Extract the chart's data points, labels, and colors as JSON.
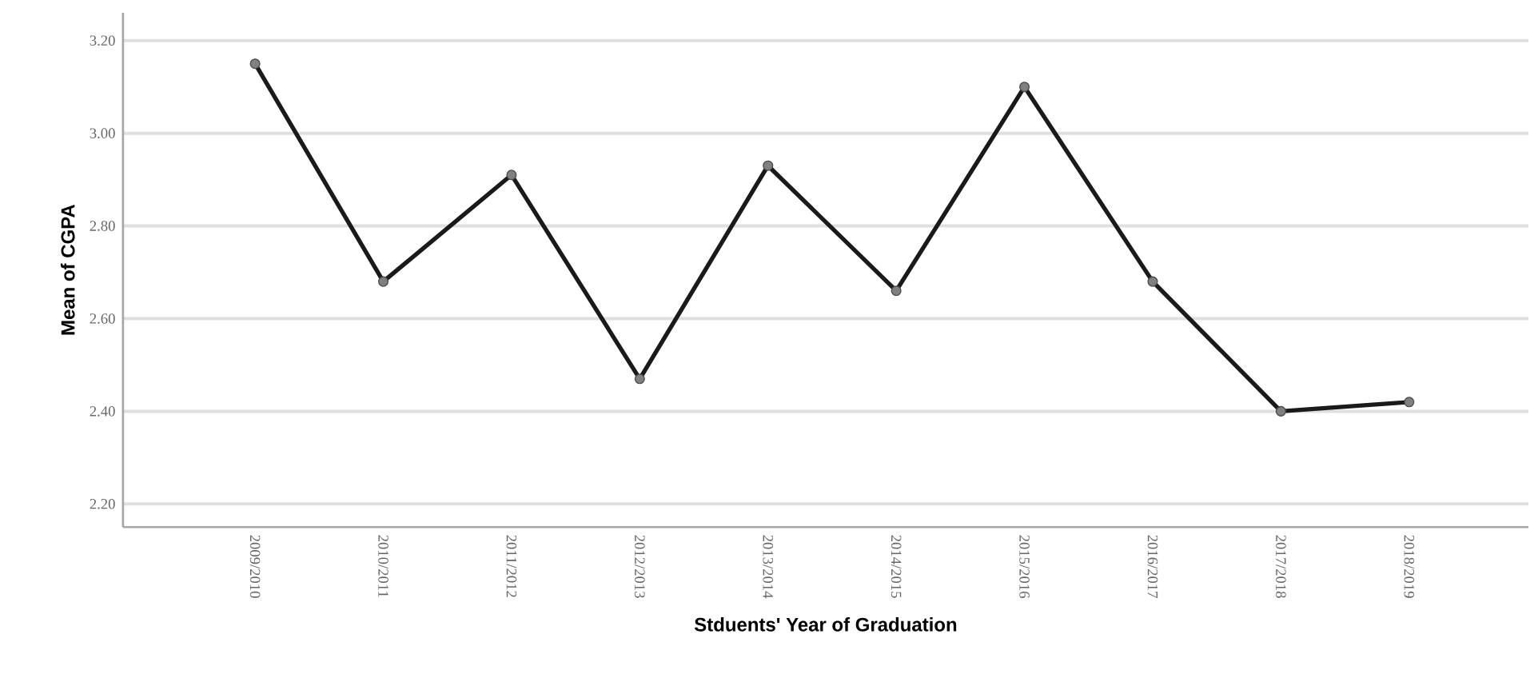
{
  "chart_data": {
    "type": "line",
    "xlabel": "Stduents' Year of Graduation",
    "ylabel": "Mean of CGPA",
    "categories": [
      "2009/2010",
      "2010/2011",
      "2011/2012",
      "2012/2013",
      "2013/2014",
      "2014/2015",
      "2015/2016",
      "2016/2017",
      "2017/2018",
      "2018/2019"
    ],
    "values": [
      3.15,
      2.68,
      2.91,
      2.47,
      2.93,
      2.66,
      3.1,
      2.68,
      2.4,
      2.42
    ],
    "color": "#1a1a1a",
    "ylim": [
      2.15,
      3.26
    ],
    "yticks": [
      {
        "value": 2.2,
        "label": "2.20"
      },
      {
        "value": 2.4,
        "label": "2.40"
      },
      {
        "value": 2.6,
        "label": "2.60"
      },
      {
        "value": 2.8,
        "label": "2.80"
      },
      {
        "value": 3.0,
        "label": "3.00"
      },
      {
        "value": 3.2,
        "label": "3.20"
      }
    ],
    "grid": "y",
    "marker": "circle",
    "line_style": "solid"
  }
}
